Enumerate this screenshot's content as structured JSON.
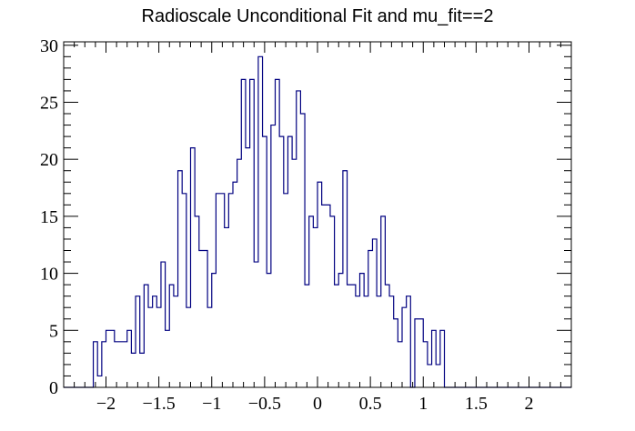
{
  "chart_data": {
    "type": "histogram",
    "title": "Radioscale Unconditional Fit and mu_fit==2",
    "xlabel": "",
    "ylabel": "",
    "xlim": [
      -2.4,
      2.4
    ],
    "ylim": [
      0,
      30.3
    ],
    "bin_width": 0.04,
    "x_ticks": [
      -2,
      -1.5,
      -1,
      -0.5,
      0,
      0.5,
      1,
      1.5,
      2
    ],
    "x_tick_labels": [
      "−2",
      "−1.5",
      "−1",
      "−0.5",
      "0",
      "0.5",
      "1",
      "1.5",
      "2"
    ],
    "y_ticks": [
      0,
      5,
      10,
      15,
      20,
      25,
      30
    ],
    "y_tick_labels": [
      "0",
      "5",
      "10",
      "15",
      "20",
      "25",
      "30"
    ],
    "grid": false,
    "legend": "none",
    "line_color": "#000080",
    "counts": [
      0,
      0,
      0,
      0,
      0,
      0,
      0,
      4,
      1,
      4,
      5,
      5,
      4,
      4,
      4,
      5,
      3,
      8,
      3,
      9,
      7,
      8,
      7,
      11,
      5,
      9,
      8,
      19,
      17,
      7,
      21,
      15,
      12,
      12,
      7,
      10,
      17,
      17,
      14,
      17,
      18,
      20,
      27,
      21,
      27,
      11,
      29,
      22,
      10,
      23,
      27,
      22,
      17,
      22,
      20,
      26,
      24,
      9,
      15,
      14,
      18,
      16,
      16,
      15,
      9,
      10,
      19,
      9,
      9,
      8,
      10,
      8,
      12,
      13,
      8,
      15,
      9,
      8,
      6,
      4,
      7,
      8,
      0,
      6,
      6,
      4,
      2,
      5,
      2,
      5,
      0,
      0,
      0,
      0,
      0,
      0,
      0,
      0,
      0,
      0,
      0,
      0,
      0,
      0,
      0,
      0,
      0,
      0,
      0,
      0,
      0,
      0,
      0,
      0,
      0,
      0,
      0,
      0,
      0,
      0
    ]
  }
}
